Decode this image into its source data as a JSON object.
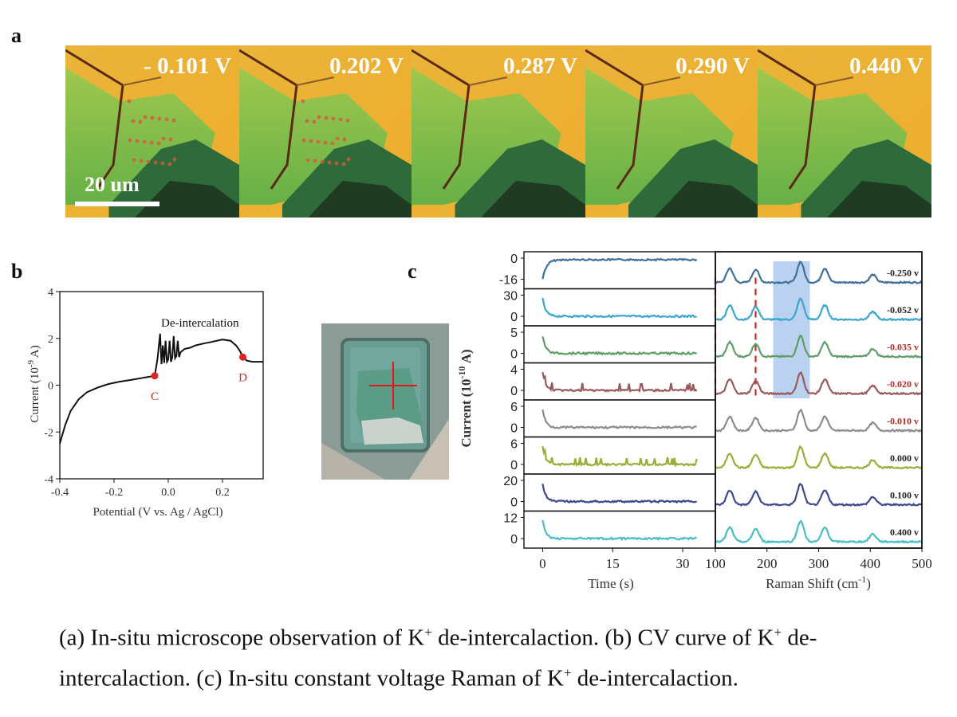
{
  "panels": {
    "a": "a",
    "b": "b",
    "c": "c"
  },
  "micro_voltages": [
    "- 0.101 V",
    "0.202 V",
    "0.287 V",
    "0.290 V",
    "0.440 V"
  ],
  "scale_bar": "20 um",
  "cv_chart": {
    "type": "line",
    "xlabel": "Potential (V vs. Ag / AgCl)",
    "ylabel_main": "Current (10",
    "ylabel_exp": "-9",
    "ylabel_unit": " A)",
    "xlim": [
      -0.4,
      0.35
    ],
    "ylim": [
      -4,
      4
    ],
    "xticks": [
      "-0.4",
      "-0.2",
      "0.0",
      "0.2"
    ],
    "xtick_values": [
      -0.4,
      -0.2,
      0.0,
      0.2
    ],
    "yticks": [
      "-4",
      "-2",
      "0",
      "2",
      "4"
    ],
    "ytick_values": [
      -4,
      -2,
      0,
      2,
      4
    ],
    "annotation": "De-intercalation",
    "points": [
      {
        "label": "C",
        "x": -0.05,
        "y": 0.4
      },
      {
        "label": "D",
        "x": 0.275,
        "y": 1.2
      }
    ],
    "x": [
      -0.4,
      -0.38,
      -0.36,
      -0.33,
      -0.3,
      -0.26,
      -0.22,
      -0.18,
      -0.14,
      -0.1,
      -0.07,
      -0.05,
      -0.04,
      -0.03,
      -0.025,
      -0.02,
      -0.015,
      -0.01,
      -0.005,
      0.0,
      0.005,
      0.01,
      0.015,
      0.02,
      0.025,
      0.03,
      0.035,
      0.04,
      0.045,
      0.05,
      0.06,
      0.08,
      0.1,
      0.13,
      0.16,
      0.2,
      0.23,
      0.25,
      0.265,
      0.275,
      0.29,
      0.31,
      0.33,
      0.35
    ],
    "y": [
      -2.5,
      -1.7,
      -1.1,
      -0.6,
      -0.3,
      -0.1,
      0.05,
      0.15,
      0.22,
      0.3,
      0.36,
      0.4,
      1.1,
      2.2,
      0.9,
      1.7,
      0.95,
      1.9,
      1.0,
      1.1,
      1.9,
      1.0,
      1.2,
      2.1,
      1.15,
      1.25,
      1.9,
      1.2,
      1.4,
      1.45,
      1.55,
      1.6,
      1.7,
      1.78,
      1.85,
      1.95,
      1.9,
      1.7,
      1.45,
      1.2,
      1.05,
      1.0,
      1.0,
      1.0
    ]
  },
  "raman_chart": {
    "time_xlabel": "Time (s)",
    "raman_xlabel_main": "Raman Shift (cm",
    "raman_xlabel_exp": "-1",
    "raman_xlabel_end": ")",
    "ylabel_main": "Current (10",
    "ylabel_exp": "-10",
    "ylabel_unit": " A)",
    "time_xticks": [
      "0",
      "15",
      "30"
    ],
    "time_xtick_values": [
      0,
      15,
      30
    ],
    "raman_xticks": [
      "100",
      "200",
      "300",
      "400",
      "500"
    ],
    "raman_xtick_values": [
      100,
      200,
      300,
      400,
      500
    ],
    "time_range": [
      -4,
      37
    ],
    "raman_range": [
      100,
      500
    ],
    "highlight_range": [
      212,
      283
    ],
    "dashed_lines": [
      100,
      178
    ],
    "peaks": [
      [
        128,
        0.55
      ],
      [
        178,
        0.5
      ],
      [
        265,
        0.8
      ],
      [
        312,
        0.55
      ],
      [
        405,
        0.3
      ]
    ],
    "rows": [
      {
        "voltage": "-0.250 v",
        "color": "#3f6f9a",
        "red_label": false,
        "yticks": [
          "0",
          "-16"
        ]
      },
      {
        "voltage": "-0.052 v",
        "color": "#3aa6d0",
        "red_label": false,
        "yticks": [
          "30",
          "0"
        ]
      },
      {
        "voltage": "-0.035 v",
        "color": "#5e9e66",
        "red_label": true,
        "yticks": [
          "5",
          "0"
        ]
      },
      {
        "voltage": "-0.020 v",
        "color": "#9a5a5c",
        "red_label": true,
        "yticks": [
          "4",
          "0"
        ]
      },
      {
        "voltage": "-0.010 v",
        "color": "#8c8c8c",
        "red_label": true,
        "yticks": [
          "6",
          "0"
        ]
      },
      {
        "voltage": "0.000 v",
        "color": "#9aae35",
        "red_label": false,
        "yticks": [
          "6",
          "0"
        ]
      },
      {
        "voltage": "0.100 v",
        "color": "#3d4a8f",
        "red_label": false,
        "yticks": [
          "20",
          "0"
        ]
      },
      {
        "voltage": "0.400 v",
        "color": "#47bec4",
        "red_label": false,
        "yticks": [
          "12",
          "0"
        ]
      }
    ]
  },
  "caption": {
    "part1": "(a) In-situ microscope observation of K",
    "sup1": "+",
    "part2": " de-intercalaction. (b) CV curve of K",
    "sup2": "+",
    "part3": " de-intercalaction. (c) In-situ constant voltage Raman of K",
    "sup3": "+",
    "part4": " de-intercalaction."
  }
}
